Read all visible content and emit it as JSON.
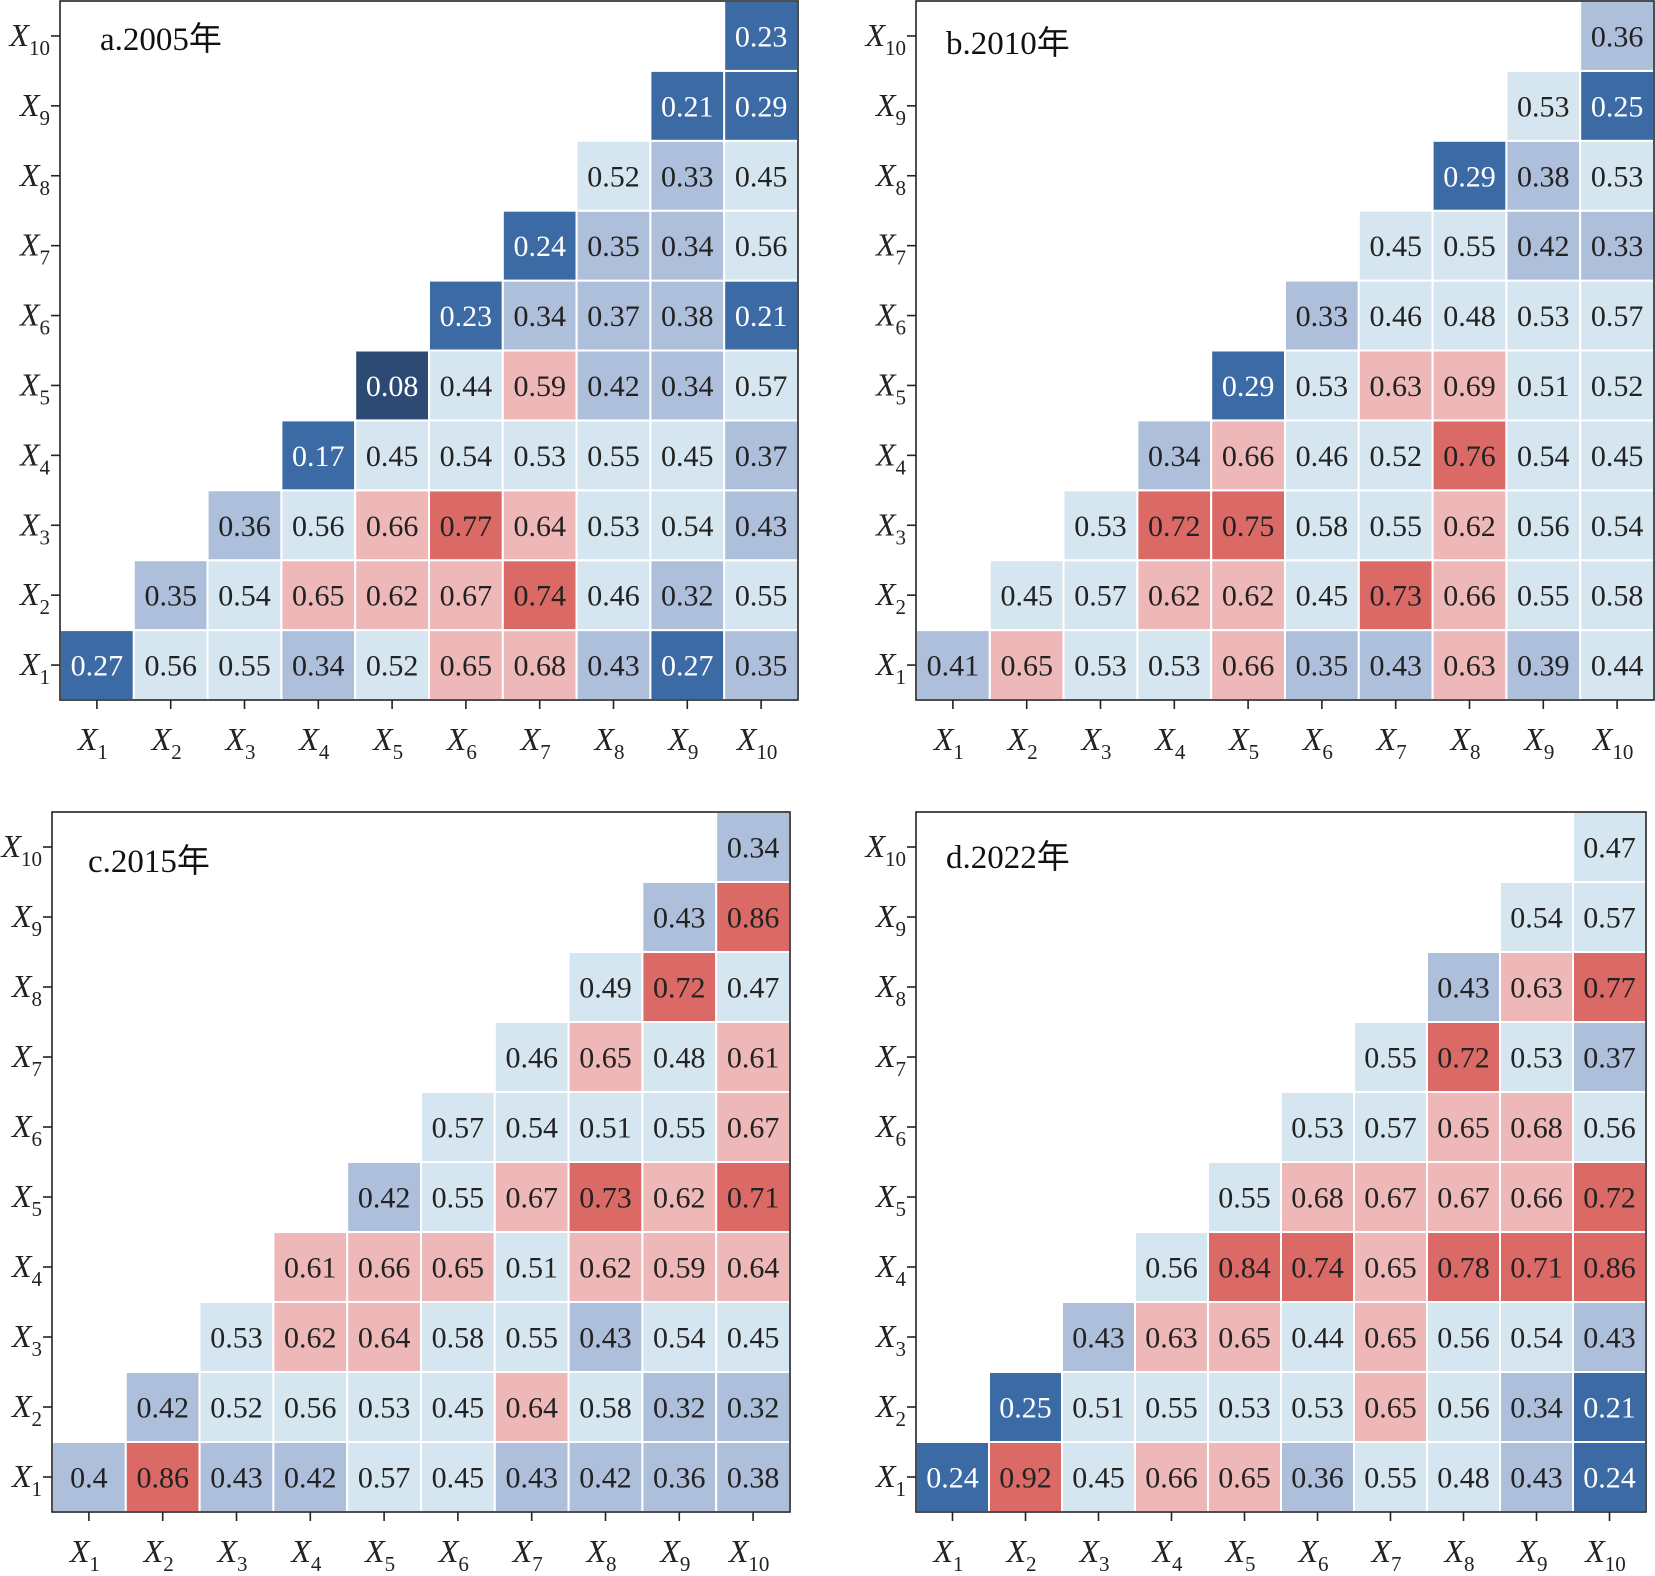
{
  "chart_data": [
    {
      "type": "heatmap",
      "title": "a.2005年",
      "x_labels": [
        "X1",
        "X2",
        "X3",
        "X4",
        "X5",
        "X6",
        "X7",
        "X8",
        "X9",
        "X10"
      ],
      "y_labels": [
        "X1",
        "X2",
        "X3",
        "X4",
        "X5",
        "X6",
        "X7",
        "X8",
        "X9",
        "X10"
      ],
      "rows": [
        [
          0.27,
          0.56,
          0.55,
          0.34,
          0.52,
          0.65,
          0.68,
          0.43,
          0.27,
          0.35
        ],
        [
          0.35,
          0.54,
          0.65,
          0.62,
          0.67,
          0.74,
          0.46,
          0.32,
          0.55
        ],
        [
          0.36,
          0.56,
          0.66,
          0.77,
          0.64,
          0.53,
          0.54,
          0.43
        ],
        [
          0.17,
          0.45,
          0.54,
          0.53,
          0.55,
          0.45,
          0.37
        ],
        [
          0.08,
          0.44,
          0.59,
          0.42,
          0.34,
          0.57
        ],
        [
          0.23,
          0.34,
          0.37,
          0.38,
          0.21
        ],
        [
          0.24,
          0.35,
          0.34,
          0.56
        ],
        [
          0.52,
          0.33,
          0.45
        ],
        [
          0.21,
          0.29
        ],
        [
          0.23
        ]
      ]
    },
    {
      "type": "heatmap",
      "title": "b.2010年",
      "x_labels": [
        "X1",
        "X2",
        "X3",
        "X4",
        "X5",
        "X6",
        "X7",
        "X8",
        "X9",
        "X10"
      ],
      "y_labels": [
        "X1",
        "X2",
        "X3",
        "X4",
        "X5",
        "X6",
        "X7",
        "X8",
        "X9",
        "X10"
      ],
      "rows": [
        [
          0.41,
          0.65,
          0.53,
          0.53,
          0.66,
          0.35,
          0.43,
          0.63,
          0.39,
          0.44
        ],
        [
          0.45,
          0.57,
          0.62,
          0.62,
          0.45,
          0.73,
          0.66,
          0.55,
          0.58
        ],
        [
          0.53,
          0.72,
          0.75,
          0.58,
          0.55,
          0.62,
          0.56,
          0.54
        ],
        [
          0.34,
          0.66,
          0.46,
          0.52,
          0.76,
          0.54,
          0.45
        ],
        [
          0.29,
          0.53,
          0.63,
          0.69,
          0.51,
          0.52
        ],
        [
          0.33,
          0.46,
          0.48,
          0.53,
          0.57
        ],
        [
          0.45,
          0.55,
          0.42,
          0.33
        ],
        [
          0.29,
          0.38,
          0.53
        ],
        [
          0.53,
          0.25
        ],
        [
          0.36
        ]
      ]
    },
    {
      "type": "heatmap",
      "title": "c.2015年",
      "x_labels": [
        "X1",
        "X2",
        "X3",
        "X4",
        "X5",
        "X6",
        "X7",
        "X8",
        "X9",
        "X10"
      ],
      "y_labels": [
        "X1",
        "X2",
        "X3",
        "X4",
        "X5",
        "X6",
        "X7",
        "X8",
        "X9",
        "X10"
      ],
      "rows": [
        [
          "0.4",
          0.86,
          0.43,
          0.42,
          0.57,
          0.45,
          0.43,
          0.42,
          0.36,
          0.38
        ],
        [
          0.42,
          0.52,
          0.56,
          0.53,
          0.45,
          0.64,
          0.58,
          0.32,
          0.32
        ],
        [
          0.53,
          0.62,
          0.64,
          0.58,
          0.55,
          0.43,
          0.54,
          0.45
        ],
        [
          0.61,
          0.66,
          0.65,
          0.51,
          0.62,
          0.59,
          0.64
        ],
        [
          0.42,
          0.55,
          0.67,
          0.73,
          0.62,
          0.71
        ],
        [
          0.57,
          0.54,
          0.51,
          0.55,
          0.67
        ],
        [
          0.46,
          0.65,
          0.48,
          0.61
        ],
        [
          0.49,
          0.72,
          0.47
        ],
        [
          0.43,
          0.86
        ],
        [
          0.34
        ]
      ]
    },
    {
      "type": "heatmap",
      "title": "d.2022年",
      "x_labels": [
        "X1",
        "X2",
        "X3",
        "X4",
        "X5",
        "X6",
        "X7",
        "X8",
        "X9",
        "X10"
      ],
      "y_labels": [
        "X1",
        "X2",
        "X3",
        "X4",
        "X5",
        "X6",
        "X7",
        "X8",
        "X9",
        "X10"
      ],
      "rows": [
        [
          0.24,
          0.92,
          0.45,
          0.66,
          0.65,
          0.36,
          0.55,
          0.48,
          0.43,
          0.24
        ],
        [
          0.25,
          0.51,
          0.55,
          0.53,
          0.53,
          0.65,
          0.56,
          0.34,
          0.21
        ],
        [
          0.43,
          0.63,
          0.65,
          0.44,
          0.65,
          0.56,
          0.54,
          0.43
        ],
        [
          0.56,
          0.84,
          0.74,
          0.65,
          0.78,
          0.71,
          0.86
        ],
        [
          0.55,
          0.68,
          0.67,
          0.67,
          0.66,
          0.72
        ],
        [
          0.53,
          0.57,
          0.65,
          0.68,
          0.56
        ],
        [
          0.55,
          0.72,
          0.53,
          0.37
        ],
        [
          0.43,
          0.63,
          0.77
        ],
        [
          0.54,
          0.57
        ],
        [
          0.47
        ]
      ]
    }
  ],
  "colors": {
    "darkest_blue": "#2c4a74",
    "dark_blue": "#3c6aa4",
    "medium_blue": "#aebfdc",
    "light_blue": "#d6e6f0",
    "light_red": "#efb8b8",
    "dark_red": "#db6a66",
    "text_dark": "#222222",
    "text_light": "#ffffff"
  }
}
